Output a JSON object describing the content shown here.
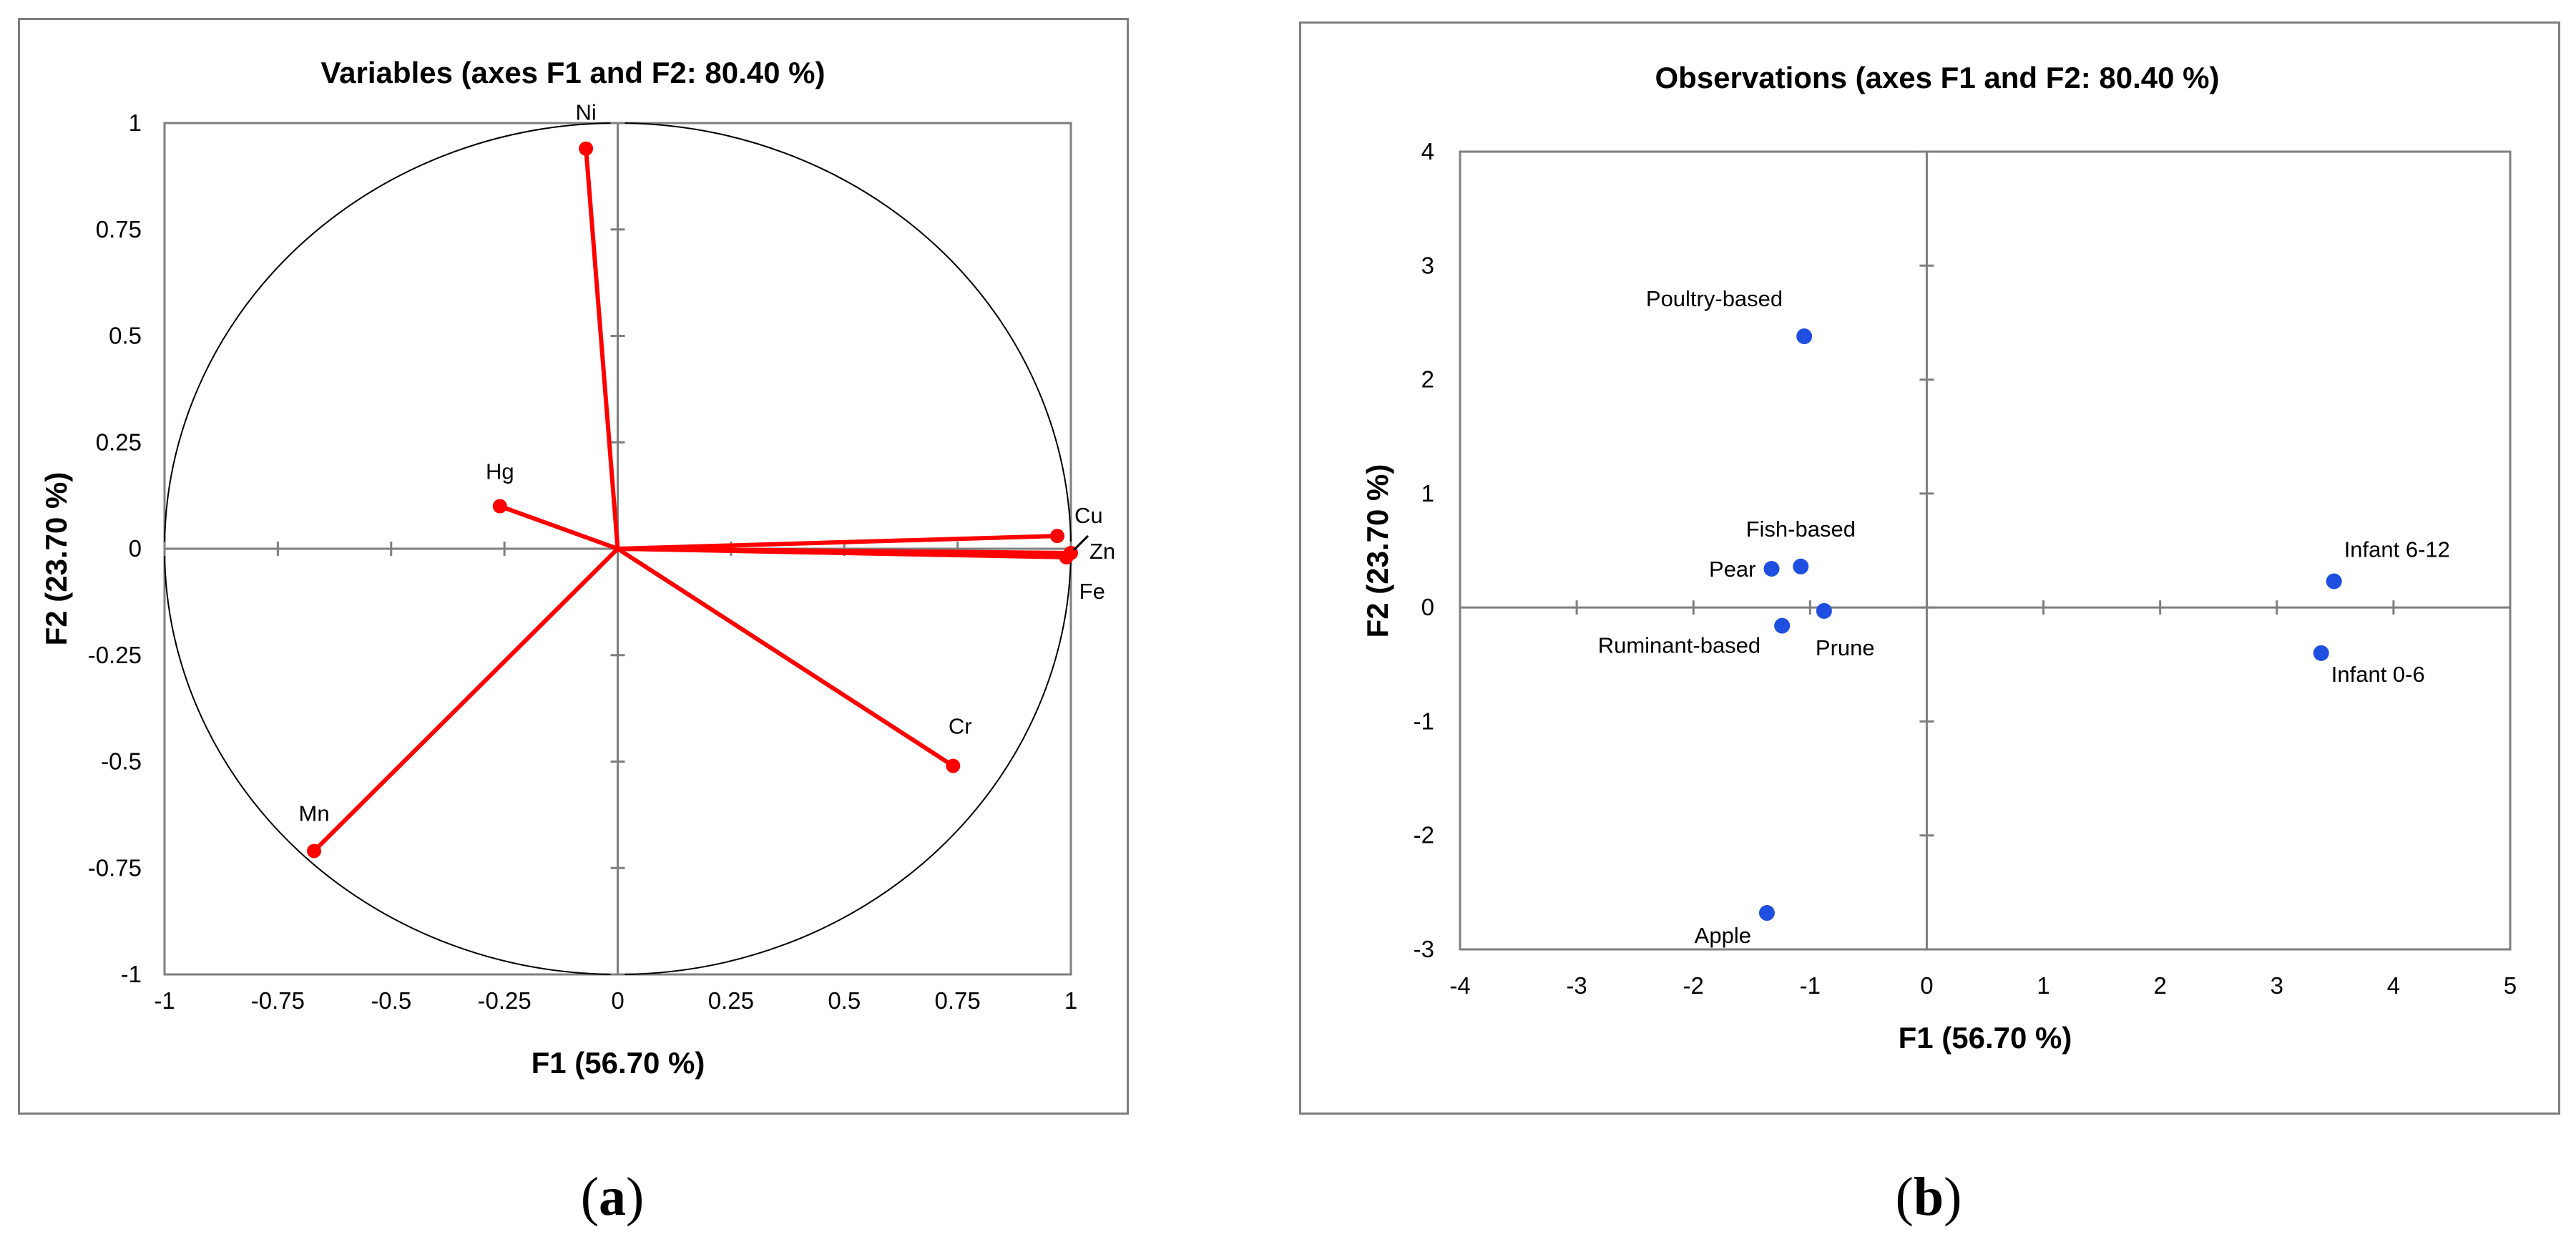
{
  "panels": [
    {
      "caption_open": "(",
      "caption_letter": "a",
      "caption_close": ")"
    },
    {
      "caption_open": "(",
      "caption_letter": "b",
      "caption_close": ")"
    }
  ],
  "colors": {
    "vector": "#ff0000",
    "observation": "#1f4fe0",
    "axis": "#7f7f7f",
    "frame": "#7f7f7f"
  },
  "chart_data": [
    {
      "type": "scatter",
      "subtype": "correlation-circle",
      "title": "Variables (axes F1 and F2: 80.40 %)",
      "xlabel": "F1 (56.70 %)",
      "ylabel": "F2 (23.70 %)",
      "xlim": [
        -1,
        1
      ],
      "ylim": [
        -1,
        1
      ],
      "xticks": [
        "-1",
        "-0.75",
        "-0.5",
        "-0.25",
        "0",
        "0.25",
        "0.5",
        "0.75",
        "1"
      ],
      "yticks": [
        "-1",
        "-0.75",
        "-0.5",
        "-0.25",
        "0",
        "0.25",
        "0.5",
        "0.75",
        "1"
      ],
      "points": [
        {
          "label": "Ni",
          "x": -0.07,
          "y": 0.94
        },
        {
          "label": "Hg",
          "x": -0.26,
          "y": 0.1
        },
        {
          "label": "Cu",
          "x": 0.97,
          "y": 0.03
        },
        {
          "label": "Zn",
          "x": 1.0,
          "y": -0.01
        },
        {
          "label": "Fe",
          "x": 0.99,
          "y": -0.02
        },
        {
          "label": "Cr",
          "x": 0.74,
          "y": -0.51
        },
        {
          "label": "Mn",
          "x": -0.67,
          "y": -0.71
        }
      ]
    },
    {
      "type": "scatter",
      "title": "Observations (axes F1 and F2: 80.40 %)",
      "xlabel": "F1 (56.70 %)",
      "ylabel": "F2 (23.70 %)",
      "xlim": [
        -4,
        5
      ],
      "ylim": [
        -3,
        4
      ],
      "xticks": [
        "-4",
        "-3",
        "-2",
        "-1",
        "0",
        "1",
        "2",
        "3",
        "4",
        "5"
      ],
      "yticks": [
        "-3",
        "-2",
        "-1",
        "0",
        "1",
        "2",
        "3",
        "4"
      ],
      "points": [
        {
          "label": "Poultry-based",
          "x": -1.05,
          "y": 2.38
        },
        {
          "label": "Fish-based",
          "x": -1.08,
          "y": 0.36
        },
        {
          "label": "Pear",
          "x": -1.33,
          "y": 0.34
        },
        {
          "label": "Ruminant-based",
          "x": -1.24,
          "y": -0.16
        },
        {
          "label": "Prune",
          "x": -0.88,
          "y": -0.03
        },
        {
          "label": "Infant 6-12",
          "x": 3.49,
          "y": 0.23
        },
        {
          "label": "Infant 0-6",
          "x": 3.38,
          "y": -0.4
        },
        {
          "label": "Apple",
          "x": -1.37,
          "y": -2.68
        }
      ]
    }
  ]
}
